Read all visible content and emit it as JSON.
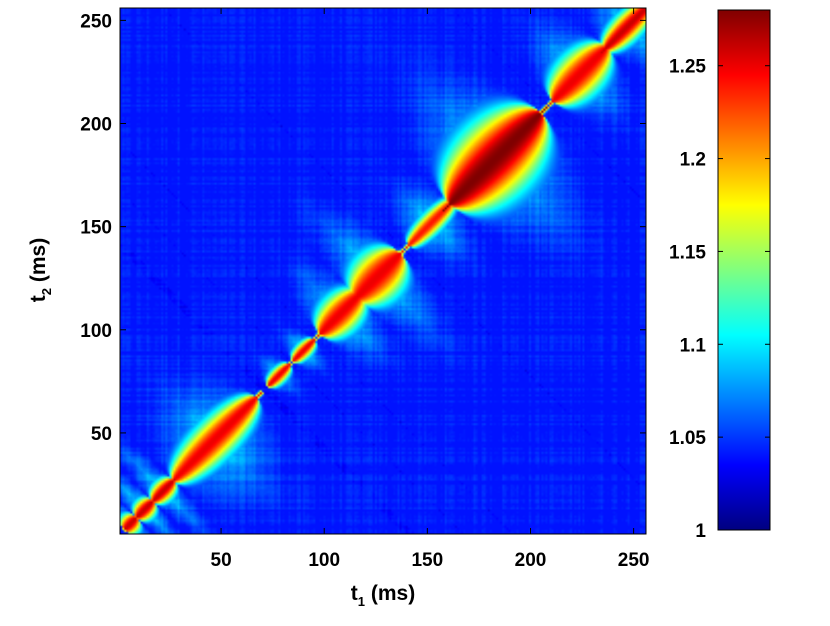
{
  "chart_data": {
    "type": "heatmap",
    "xlabel": {
      "main": "t",
      "sub": "1",
      "unit": " (ms)"
    },
    "ylabel": {
      "main": "t",
      "sub": "2",
      "unit": " (ms)"
    },
    "xlim": [
      1,
      256
    ],
    "ylim": [
      1,
      256
    ],
    "xticks": [
      50,
      100,
      150,
      200,
      250
    ],
    "yticks": [
      50,
      100,
      150,
      200,
      250
    ],
    "colorbar": {
      "range": [
        1,
        1.28
      ],
      "ticks": [
        1,
        1.05,
        1.1,
        1.15,
        1.2,
        1.25
      ],
      "tick_labels": [
        "1",
        "1.05",
        "1.1",
        "1.15",
        "1.2",
        "1.25"
      ],
      "colormap": "jet",
      "location": "right"
    },
    "background_value": 1.04,
    "structure": "symmetric correlation matrix; high values along the diagonal t1 = t2 forming a chain of lobes",
    "diagonal_lobes": [
      {
        "center": 6,
        "half_width": 3,
        "peak": 1.26,
        "lobe_width": 3,
        "halo": 12
      },
      {
        "center": 13,
        "half_width": 4,
        "peak": 1.26,
        "lobe_width": 3,
        "halo": 15
      },
      {
        "center": 22,
        "half_width": 5,
        "peak": 1.26,
        "lobe_width": 3,
        "halo": 17
      },
      {
        "center": 47,
        "half_width": 20,
        "peak": 1.25,
        "lobe_width": 6,
        "halo": 21
      },
      {
        "center": 78,
        "half_width": 5,
        "peak": 1.25,
        "lobe_width": 2,
        "halo": 7
      },
      {
        "center": 90,
        "half_width": 5,
        "peak": 1.25,
        "lobe_width": 2,
        "halo": 8
      },
      {
        "center": 108,
        "half_width": 10,
        "peak": 1.25,
        "lobe_width": 6,
        "halo": 17
      },
      {
        "center": 126,
        "half_width": 11,
        "peak": 1.25,
        "lobe_width": 8,
        "halo": 24
      },
      {
        "center": 152,
        "half_width": 11,
        "peak": 1.24,
        "lobe_width": 3,
        "halo": 14
      },
      {
        "center": 183,
        "half_width": 22,
        "peak": 1.28,
        "lobe_width": 12,
        "halo": 30
      },
      {
        "center": 224,
        "half_width": 13,
        "peak": 1.25,
        "lobe_width": 7,
        "halo": 18
      },
      {
        "center": 247,
        "half_width": 11,
        "peak": 1.26,
        "lobe_width": 4,
        "halo": 13
      }
    ]
  }
}
